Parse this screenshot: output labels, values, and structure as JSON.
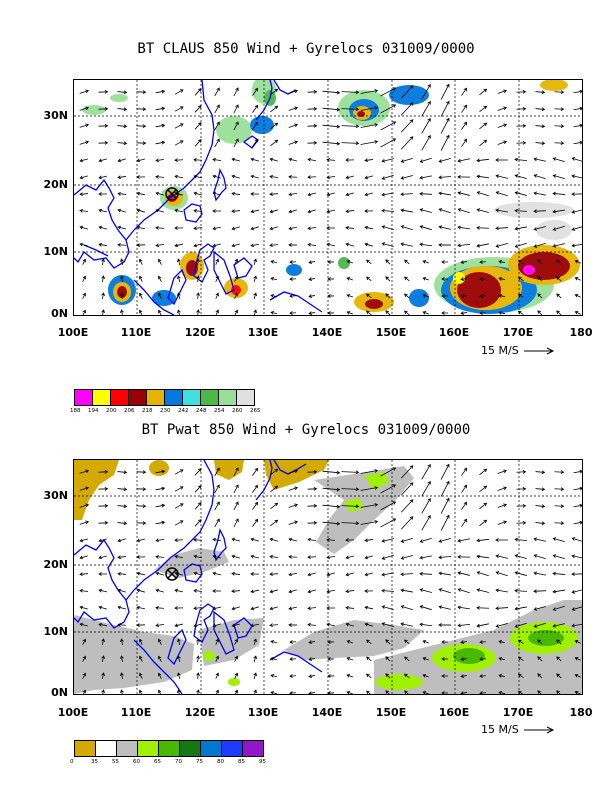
{
  "top_panel": {
    "title": "BT CLAUS 850 Wind + Gyrelocs 031009/0000",
    "lat_labels": [
      "30N",
      "20N",
      "10N",
      "0N"
    ],
    "lon_labels": [
      "100E",
      "110E",
      "120E",
      "130E",
      "140E",
      "150E",
      "160E",
      "170E",
      "180"
    ],
    "scale_label": "15 M/S",
    "colorbar": {
      "colors": [
        "#ff00ff",
        "#ffff00",
        "#ff0000",
        "#990000",
        "#e6b400",
        "#0078dc",
        "#40e0e0",
        "#4cb848",
        "#98e098",
        "#e0e0e0"
      ],
      "ticks": [
        "188",
        "194",
        "200",
        "206",
        "218",
        "230",
        "242",
        "248",
        "254",
        "260",
        "265"
      ]
    }
  },
  "bottom_panel": {
    "title": "BT Pwat 850 Wind + Gyrelocs 031009/0000",
    "lat_labels": [
      "30N",
      "20N",
      "10N",
      "0N"
    ],
    "lon_labels": [
      "100E",
      "110E",
      "120E",
      "130E",
      "140E",
      "150E",
      "160E",
      "170E",
      "180"
    ],
    "scale_label": "15 M/S",
    "colorbar": {
      "colors": [
        "#d4aa00",
        "#ffffff",
        "#bebebe",
        "#a0f000",
        "#48b800",
        "#147814",
        "#0078d0",
        "#1e3cff",
        "#9018c8"
      ],
      "ticks": [
        "0",
        "35",
        "55",
        "60",
        "65",
        "70",
        "75",
        "80",
        "85",
        "95"
      ]
    }
  },
  "colors": {
    "coastline": "#0000ff",
    "grid": "#000000",
    "wind_arrow": "#000000"
  }
}
